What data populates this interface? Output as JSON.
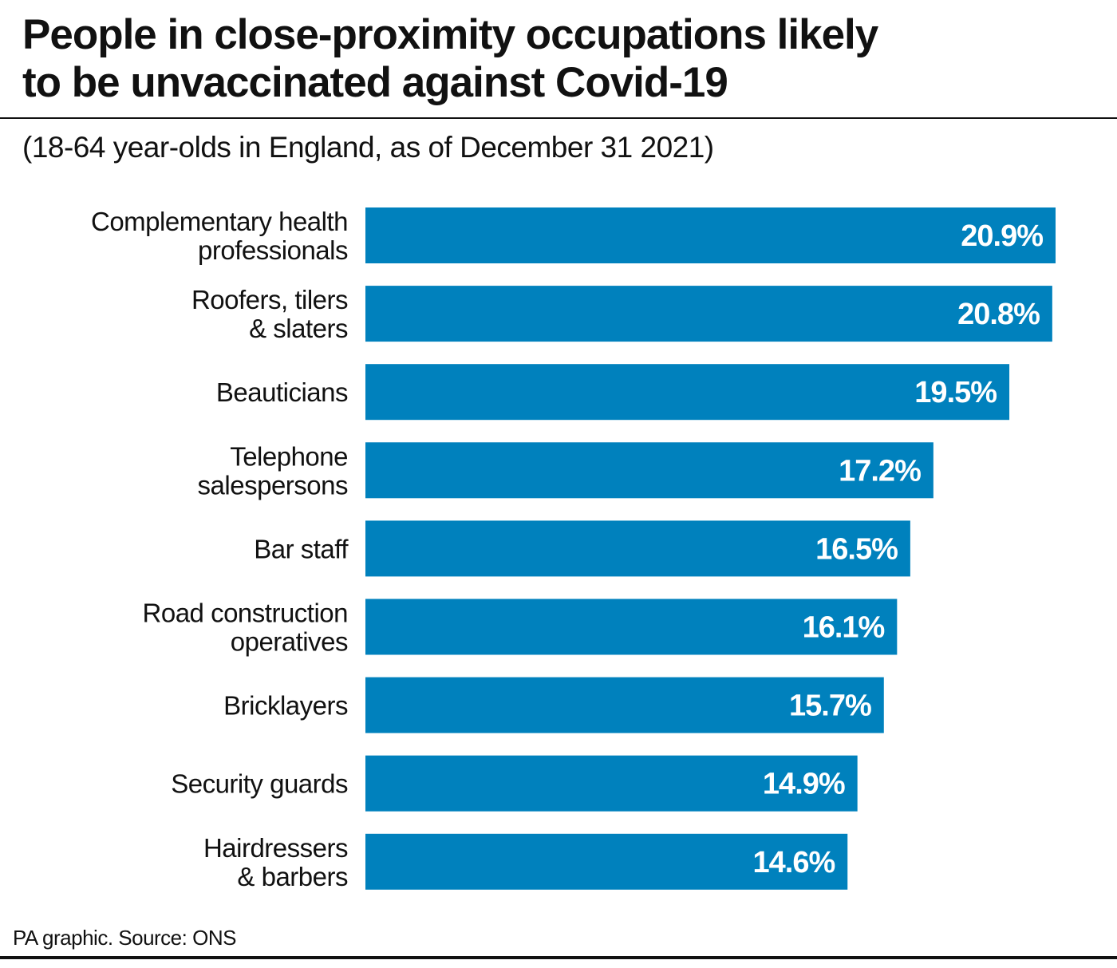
{
  "title_lines": [
    "People in close-proximity occupations likely",
    "to be unvaccinated against Covid-19"
  ],
  "subtitle": "(18-64 year-olds in England, as of December 31 2021)",
  "source": "PA graphic. Source: ONS",
  "colors": {
    "bar": "#0081bd",
    "text": "#111111"
  },
  "chart_data": {
    "type": "bar",
    "orientation": "horizontal",
    "title": "People in close-proximity occupations likely to be unvaccinated against Covid-19",
    "subtitle": "(18-64 year-olds in England, as of December 31 2021)",
    "categories": [
      [
        "Complementary health",
        "professionals"
      ],
      [
        "Roofers, tilers",
        "& slaters"
      ],
      [
        "Beauticians"
      ],
      [
        "Telephone",
        "salespersons"
      ],
      [
        "Bar staff"
      ],
      [
        "Road construction",
        "operatives"
      ],
      [
        "Bricklayers"
      ],
      [
        "Security guards"
      ],
      [
        "Hairdressers",
        "& barbers"
      ]
    ],
    "values": [
      20.9,
      20.8,
      19.5,
      17.2,
      16.5,
      16.1,
      15.7,
      14.9,
      14.6
    ],
    "value_labels": [
      "20.9%",
      "20.8%",
      "19.5%",
      "17.2%",
      "16.5%",
      "16.1%",
      "15.7%",
      "14.9%",
      "14.6%"
    ],
    "unit": "%",
    "xlim": [
      0,
      20.9
    ],
    "grid": false
  }
}
